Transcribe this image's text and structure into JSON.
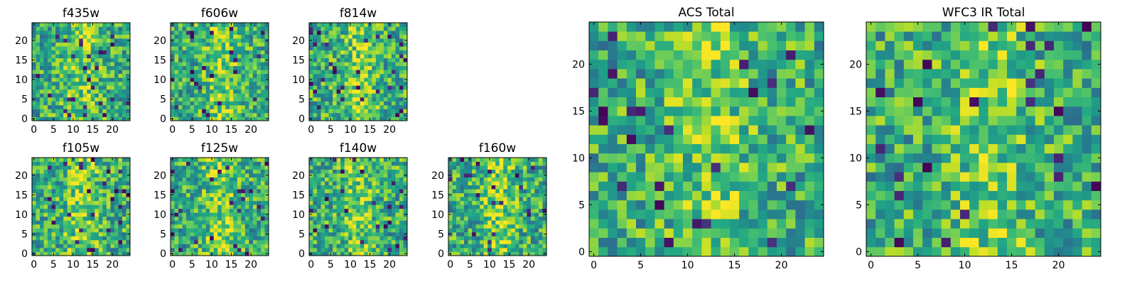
{
  "colormap": "viridis",
  "panels": [
    {
      "title": "f435w",
      "seed": 435,
      "xticks": [
        0,
        5,
        10,
        15,
        20
      ],
      "yticks": [
        0,
        5,
        10,
        15,
        20
      ],
      "xlim": [
        0,
        25
      ],
      "ylim": [
        0,
        25
      ],
      "grid": false
    },
    {
      "title": "f606w",
      "seed": 606,
      "xticks": [
        0,
        5,
        10,
        15,
        20
      ],
      "yticks": [
        0,
        5,
        10,
        15,
        20
      ],
      "xlim": [
        0,
        25
      ],
      "ylim": [
        0,
        25
      ],
      "grid": false
    },
    {
      "title": "f814w",
      "seed": 814,
      "xticks": [
        0,
        5,
        10,
        15,
        20
      ],
      "yticks": [
        0,
        5,
        10,
        15,
        20
      ],
      "xlim": [
        0,
        25
      ],
      "ylim": [
        0,
        25
      ],
      "grid": false
    },
    {
      "title": "f105w",
      "seed": 105,
      "xticks": [
        0,
        5,
        10,
        15,
        20
      ],
      "yticks": [
        0,
        5,
        10,
        15,
        20
      ],
      "xlim": [
        0,
        25
      ],
      "ylim": [
        0,
        25
      ],
      "grid": false
    },
    {
      "title": "f125w",
      "seed": 125,
      "xticks": [
        0,
        5,
        10,
        15,
        20
      ],
      "yticks": [
        0,
        5,
        10,
        15,
        20
      ],
      "xlim": [
        0,
        25
      ],
      "ylim": [
        0,
        25
      ],
      "grid": false
    },
    {
      "title": "f140w",
      "seed": 140,
      "xticks": [
        0,
        5,
        10,
        15,
        20
      ],
      "yticks": [
        0,
        5,
        10,
        15,
        20
      ],
      "xlim": [
        0,
        25
      ],
      "ylim": [
        0,
        25
      ],
      "grid": false
    },
    {
      "title": "f160w",
      "seed": 160,
      "xticks": [
        0,
        5,
        10,
        15,
        20
      ],
      "yticks": [
        0,
        5,
        10,
        15,
        20
      ],
      "xlim": [
        0,
        25
      ],
      "ylim": [
        0,
        25
      ],
      "grid": false
    },
    {
      "title": "ACS Total",
      "seed": 9001,
      "xticks": [
        0,
        5,
        10,
        15,
        20
      ],
      "yticks": [
        0,
        5,
        10,
        15,
        20
      ],
      "xlim": [
        0,
        25
      ],
      "ylim": [
        0,
        25
      ],
      "grid": false
    },
    {
      "title": "WFC3 IR Total",
      "seed": 9002,
      "xticks": [
        0,
        5,
        10,
        15,
        20
      ],
      "yticks": [
        0,
        5,
        10,
        15,
        20
      ],
      "xlim": [
        0,
        25
      ],
      "ylim": [
        0,
        25
      ],
      "grid": false
    }
  ],
  "chart_data": [
    {
      "type": "heatmap",
      "title": "f435w",
      "grid_size": [
        25,
        25
      ],
      "xlim": [
        0,
        25
      ],
      "ylim": [
        0,
        25
      ]
    },
    {
      "type": "heatmap",
      "title": "f606w",
      "grid_size": [
        25,
        25
      ],
      "xlim": [
        0,
        25
      ],
      "ylim": [
        0,
        25
      ]
    },
    {
      "type": "heatmap",
      "title": "f814w",
      "grid_size": [
        25,
        25
      ],
      "xlim": [
        0,
        25
      ],
      "ylim": [
        0,
        25
      ]
    },
    {
      "type": "heatmap",
      "title": "f105w",
      "grid_size": [
        25,
        25
      ],
      "xlim": [
        0,
        25
      ],
      "ylim": [
        0,
        25
      ]
    },
    {
      "type": "heatmap",
      "title": "f125w",
      "grid_size": [
        25,
        25
      ],
      "xlim": [
        0,
        25
      ],
      "ylim": [
        0,
        25
      ]
    },
    {
      "type": "heatmap",
      "title": "f140w",
      "grid_size": [
        25,
        25
      ],
      "xlim": [
        0,
        25
      ],
      "ylim": [
        0,
        25
      ]
    },
    {
      "type": "heatmap",
      "title": "f160w",
      "grid_size": [
        25,
        25
      ],
      "xlim": [
        0,
        25
      ],
      "ylim": [
        0,
        25
      ]
    },
    {
      "type": "heatmap",
      "title": "ACS Total",
      "grid_size": [
        25,
        25
      ],
      "xlim": [
        0,
        25
      ],
      "ylim": [
        0,
        25
      ]
    },
    {
      "type": "heatmap",
      "title": "WFC3 IR Total",
      "grid_size": [
        25,
        25
      ],
      "xlim": [
        0,
        25
      ],
      "ylim": [
        0,
        25
      ]
    }
  ]
}
